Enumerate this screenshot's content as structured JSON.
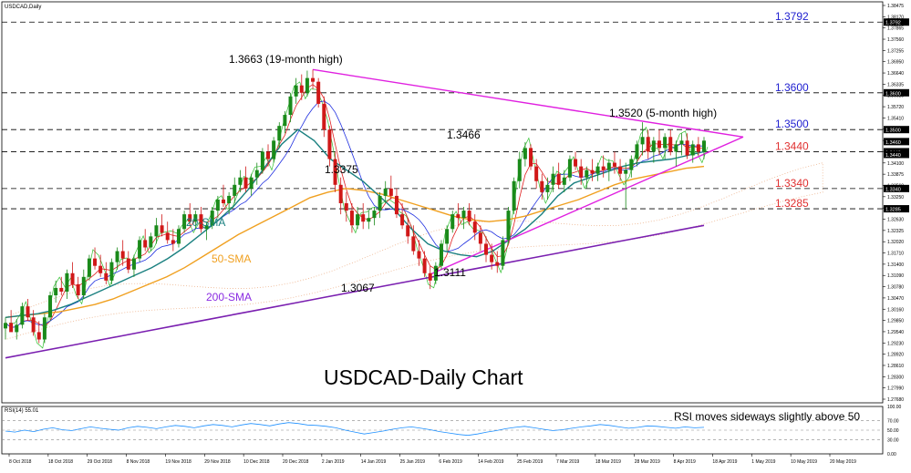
{
  "chart_title": "USDCAD,Daily",
  "chart_data": [
    {
      "type": "candlestick",
      "title": "USDCAD-Daily Chart",
      "ylim": [
        1.2758,
        1.3847
      ],
      "y_ticks": [
        "1.38475",
        "1.38170",
        "1.37865",
        "1.37560",
        "1.37255",
        "1.36950",
        "1.36640",
        "1.36335",
        "1.36025",
        "1.35720",
        "1.35410",
        "1.35105",
        "1.34795",
        "1.34490",
        "1.34100",
        "1.33875",
        "1.33560",
        "1.33250",
        "1.32945",
        "1.32630",
        "1.32325",
        "1.32020",
        "1.31710",
        "1.31400",
        "1.31090",
        "1.30780",
        "1.30470",
        "1.30160",
        "1.29850",
        "1.29540",
        "1.29230",
        "1.28920",
        "1.28610",
        "1.28300",
        "1.27990",
        "1.27680"
      ],
      "x_ticks": [
        "8 Oct 2018",
        "18 Oct 2018",
        "29 Oct 2018",
        "8 Nov 2018",
        "19 Nov 2018",
        "29 Nov 2018",
        "10 Dec 2018",
        "20 Dec 2018",
        "2 Jan 2019",
        "14 Jan 2019",
        "25 Jan 2019",
        "6 Feb 2019",
        "14 Feb 2019",
        "25 Feb 2019",
        "7 Mar 2019",
        "18 Mar 2019",
        "28 Mar 2019",
        "8 Apr 2019",
        "18 Apr 2019",
        "1 May 2019",
        "10 May 2019",
        "20 May 2019"
      ],
      "current_price_labels": [
        "1.3460",
        "1.3440"
      ],
      "candles_ohlc": [
        [
          1.296,
          1.299,
          1.293,
          1.2975
        ],
        [
          1.2975,
          1.301,
          1.2955,
          1.295
        ],
        [
          1.295,
          1.2985,
          1.293,
          1.297
        ],
        [
          1.297,
          1.303,
          1.296,
          1.302
        ],
        [
          1.302,
          1.304,
          1.298,
          1.299
        ],
        [
          1.299,
          1.301,
          1.294,
          1.295
        ],
        [
          1.295,
          1.298,
          1.292,
          1.293
        ],
        [
          1.293,
          1.3,
          1.292,
          1.299
        ],
        [
          1.299,
          1.306,
          1.298,
          1.305
        ],
        [
          1.305,
          1.309,
          1.303,
          1.307
        ],
        [
          1.307,
          1.31,
          1.305,
          1.306
        ],
        [
          1.306,
          1.312,
          1.304,
          1.311
        ],
        [
          1.311,
          1.314,
          1.307,
          1.308
        ],
        [
          1.308,
          1.31,
          1.304,
          1.305
        ],
        [
          1.305,
          1.312,
          1.304,
          1.31
        ],
        [
          1.31,
          1.316,
          1.309,
          1.315
        ],
        [
          1.315,
          1.318,
          1.312,
          1.313
        ],
        [
          1.313,
          1.316,
          1.31,
          1.311
        ],
        [
          1.311,
          1.314,
          1.308,
          1.309
        ],
        [
          1.309,
          1.315,
          1.308,
          1.314
        ],
        [
          1.314,
          1.318,
          1.312,
          1.317
        ],
        [
          1.317,
          1.32,
          1.313,
          1.315
        ],
        [
          1.315,
          1.317,
          1.311,
          1.312
        ],
        [
          1.312,
          1.316,
          1.31,
          1.315
        ],
        [
          1.315,
          1.321,
          1.314,
          1.32
        ],
        [
          1.32,
          1.323,
          1.317,
          1.318
        ],
        [
          1.318,
          1.322,
          1.317,
          1.321
        ],
        [
          1.321,
          1.326,
          1.319,
          1.324
        ],
        [
          1.324,
          1.327,
          1.321,
          1.322
        ],
        [
          1.322,
          1.325,
          1.319,
          1.32
        ],
        [
          1.32,
          1.323,
          1.317,
          1.319
        ],
        [
          1.319,
          1.324,
          1.318,
          1.323
        ],
        [
          1.323,
          1.328,
          1.322,
          1.327
        ],
        [
          1.327,
          1.33,
          1.324,
          1.325
        ],
        [
          1.325,
          1.328,
          1.323,
          1.327
        ],
        [
          1.327,
          1.329,
          1.322,
          1.323
        ],
        [
          1.323,
          1.325,
          1.32,
          1.324
        ],
        [
          1.324,
          1.329,
          1.323,
          1.328
        ],
        [
          1.328,
          1.332,
          1.326,
          1.331
        ],
        [
          1.331,
          1.335,
          1.329,
          1.33
        ],
        [
          1.33,
          1.333,
          1.327,
          1.332
        ],
        [
          1.332,
          1.337,
          1.33,
          1.335
        ],
        [
          1.335,
          1.339,
          1.333,
          1.337
        ],
        [
          1.337,
          1.34,
          1.333,
          1.334
        ],
        [
          1.334,
          1.338,
          1.332,
          1.337
        ],
        [
          1.337,
          1.341,
          1.335,
          1.339
        ],
        [
          1.339,
          1.345,
          1.338,
          1.344
        ],
        [
          1.344,
          1.346,
          1.34,
          1.342
        ],
        [
          1.342,
          1.348,
          1.341,
          1.347
        ],
        [
          1.347,
          1.352,
          1.345,
          1.351
        ],
        [
          1.351,
          1.355,
          1.349,
          1.354
        ],
        [
          1.354,
          1.36,
          1.352,
          1.359
        ],
        [
          1.359,
          1.364,
          1.357,
          1.362
        ],
        [
          1.362,
          1.365,
          1.358,
          1.36
        ],
        [
          1.36,
          1.366,
          1.359,
          1.364
        ],
        [
          1.364,
          1.3663,
          1.361,
          1.363
        ],
        [
          1.363,
          1.364,
          1.356,
          1.357
        ],
        [
          1.357,
          1.359,
          1.348,
          1.35
        ],
        [
          1.35,
          1.351,
          1.34,
          1.342
        ],
        [
          1.342,
          1.344,
          1.333,
          1.335
        ],
        [
          1.335,
          1.337,
          1.327,
          1.33
        ],
        [
          1.33,
          1.333,
          1.325,
          1.328
        ],
        [
          1.328,
          1.33,
          1.322,
          1.324
        ],
        [
          1.324,
          1.329,
          1.323,
          1.327
        ],
        [
          1.327,
          1.33,
          1.323,
          1.325
        ],
        [
          1.325,
          1.328,
          1.323,
          1.326
        ],
        [
          1.326,
          1.329,
          1.324,
          1.328
        ],
        [
          1.328,
          1.333,
          1.326,
          1.332
        ],
        [
          1.332,
          1.336,
          1.33,
          1.334
        ],
        [
          1.334,
          1.3375,
          1.331,
          1.332
        ],
        [
          1.332,
          1.334,
          1.326,
          1.327
        ],
        [
          1.327,
          1.33,
          1.323,
          1.324
        ],
        [
          1.324,
          1.326,
          1.319,
          1.321
        ],
        [
          1.321,
          1.324,
          1.316,
          1.317
        ],
        [
          1.317,
          1.32,
          1.313,
          1.315
        ],
        [
          1.315,
          1.317,
          1.31,
          1.311
        ],
        [
          1.311,
          1.313,
          1.3067,
          1.309
        ],
        [
          1.309,
          1.314,
          1.308,
          1.313
        ],
        [
          1.313,
          1.32,
          1.312,
          1.319
        ],
        [
          1.319,
          1.324,
          1.317,
          1.323
        ],
        [
          1.323,
          1.328,
          1.322,
          1.327
        ],
        [
          1.327,
          1.33,
          1.324,
          1.326
        ],
        [
          1.326,
          1.329,
          1.323,
          1.328
        ],
        [
          1.328,
          1.33,
          1.324,
          1.325
        ],
        [
          1.325,
          1.327,
          1.32,
          1.322
        ],
        [
          1.322,
          1.324,
          1.317,
          1.319
        ],
        [
          1.319,
          1.321,
          1.314,
          1.316
        ],
        [
          1.316,
          1.319,
          1.312,
          1.314
        ],
        [
          1.314,
          1.317,
          1.3111,
          1.313
        ],
        [
          1.313,
          1.321,
          1.312,
          1.32
        ],
        [
          1.32,
          1.329,
          1.319,
          1.328
        ],
        [
          1.328,
          1.337,
          1.327,
          1.336
        ],
        [
          1.336,
          1.344,
          1.334,
          1.342
        ],
        [
          1.342,
          1.3466,
          1.34,
          1.345
        ],
        [
          1.345,
          1.346,
          1.339,
          1.34
        ],
        [
          1.34,
          1.342,
          1.334,
          1.336
        ],
        [
          1.336,
          1.338,
          1.331,
          1.333
        ],
        [
          1.333,
          1.337,
          1.331,
          1.335
        ],
        [
          1.335,
          1.34,
          1.333,
          1.338
        ],
        [
          1.338,
          1.341,
          1.334,
          1.335
        ],
        [
          1.335,
          1.339,
          1.333,
          1.337
        ],
        [
          1.337,
          1.343,
          1.336,
          1.342
        ],
        [
          1.342,
          1.344,
          1.339,
          1.34
        ],
        [
          1.34,
          1.342,
          1.335,
          1.337
        ],
        [
          1.337,
          1.34,
          1.334,
          1.339
        ],
        [
          1.339,
          1.342,
          1.336,
          1.338
        ],
        [
          1.338,
          1.341,
          1.336,
          1.34
        ],
        [
          1.34,
          1.343,
          1.337,
          1.339
        ],
        [
          1.339,
          1.342,
          1.336,
          1.341
        ],
        [
          1.341,
          1.344,
          1.338,
          1.34
        ],
        [
          1.34,
          1.342,
          1.336,
          1.338
        ],
        [
          1.338,
          1.341,
          1.3285,
          1.339
        ],
        [
          1.339,
          1.343,
          1.337,
          1.342
        ],
        [
          1.342,
          1.347,
          1.34,
          1.346
        ],
        [
          1.346,
          1.352,
          1.343,
          1.348
        ],
        [
          1.348,
          1.35,
          1.342,
          1.344
        ],
        [
          1.344,
          1.348,
          1.341,
          1.347
        ],
        [
          1.347,
          1.35,
          1.343,
          1.345
        ],
        [
          1.345,
          1.349,
          1.342,
          1.348
        ],
        [
          1.348,
          1.35,
          1.343,
          1.344
        ],
        [
          1.344,
          1.347,
          1.34,
          1.346
        ],
        [
          1.346,
          1.349,
          1.343,
          1.347
        ],
        [
          1.347,
          1.349,
          1.342,
          1.343
        ],
        [
          1.343,
          1.347,
          1.341,
          1.346
        ],
        [
          1.346,
          1.348,
          1.343,
          1.344
        ],
        [
          1.344,
          1.348,
          1.342,
          1.347
        ]
      ],
      "sma20": [
        1.299,
        1.2995,
        1.3,
        1.301,
        1.3025,
        1.3045,
        1.3065,
        1.3085,
        1.3105,
        1.3125,
        1.315,
        1.318,
        1.3215,
        1.325,
        1.329,
        1.334,
        1.34,
        1.346,
        1.35,
        1.347,
        1.342,
        1.339,
        1.336,
        1.332,
        1.328,
        1.323,
        1.319,
        1.317,
        1.316,
        1.3155,
        1.317,
        1.32,
        1.323,
        1.327,
        1.332,
        1.3355,
        1.337,
        1.3385,
        1.34,
        1.341,
        1.3415,
        1.342,
        1.343,
        1.344
      ],
      "sma50": [
        1.299,
        1.2995,
        1.3,
        1.3005,
        1.3015,
        1.3025,
        1.304,
        1.306,
        1.308,
        1.31,
        1.3125,
        1.3155,
        1.3185,
        1.3215,
        1.324,
        1.3265,
        1.329,
        1.3315,
        1.333,
        1.334,
        1.3335,
        1.3325,
        1.331,
        1.3295,
        1.328,
        1.3265,
        1.3255,
        1.325,
        1.3255,
        1.3265,
        1.328,
        1.3295,
        1.331,
        1.333,
        1.335,
        1.3365,
        1.3375,
        1.3385,
        1.3395,
        1.34
      ],
      "sma200": [
        1.288,
        1.2895,
        1.291,
        1.2925,
        1.294,
        1.2955,
        1.297,
        1.2985,
        1.3,
        1.3015,
        1.303,
        1.3045,
        1.306,
        1.3075,
        1.309,
        1.3105,
        1.312,
        1.3135,
        1.315,
        1.3165,
        1.318,
        1.3195,
        1.321,
        1.3225,
        1.324
      ],
      "levels": [
        {
          "price": 1.3792,
          "label": "1.3792",
          "color": "#2020d0"
        },
        {
          "price": 1.36,
          "label": "1.3600",
          "color": "#2020d0"
        },
        {
          "price": 1.35,
          "label": "1.3500",
          "color": "#2020d0"
        },
        {
          "price": 1.344,
          "label": "1.3440",
          "color": "#e03030"
        },
        {
          "price": 1.334,
          "label": "1.3340",
          "color": "#e03030"
        },
        {
          "price": 1.3285,
          "label": "1.3285",
          "color": "#e03030"
        }
      ],
      "annotations": [
        {
          "label": "1.3663 (19-month high)"
        },
        {
          "label": "1.3520 (5-month high)"
        },
        {
          "label": "1.3466"
        },
        {
          "label": "1.3375"
        },
        {
          "label": "1.3111"
        },
        {
          "label": "1.3067"
        }
      ],
      "indicator_labels": [
        {
          "label": "20-SMA",
          "color": "#1a8080"
        },
        {
          "label": "50-SMA",
          "color": "#f0a020"
        },
        {
          "label": "200-SMA",
          "color": "#8a2be2"
        }
      ]
    },
    {
      "type": "line",
      "title": "RSI(14) 55.01",
      "ylim": [
        0,
        100
      ],
      "y_ticks": [
        "100.00",
        "70.00",
        "50.00",
        "30.00",
        "0.00"
      ],
      "note": "RSI moves sideways slightly above 50",
      "values": [
        48,
        46,
        50,
        47,
        52,
        55,
        51,
        49,
        53,
        57,
        54,
        52,
        50,
        55,
        58,
        56,
        53,
        57,
        60,
        58,
        55,
        59,
        62,
        60,
        57,
        61,
        64,
        62,
        59,
        63,
        66,
        64,
        61,
        60,
        58,
        55,
        50,
        46,
        42,
        45,
        48,
        52,
        55,
        57,
        54,
        51,
        47,
        44,
        41,
        39,
        42,
        46,
        49,
        53,
        56,
        58,
        55,
        52,
        49,
        51,
        54,
        57,
        59,
        62,
        60,
        57,
        54,
        56,
        59,
        58,
        56,
        54,
        57,
        55,
        56
      ]
    }
  ]
}
